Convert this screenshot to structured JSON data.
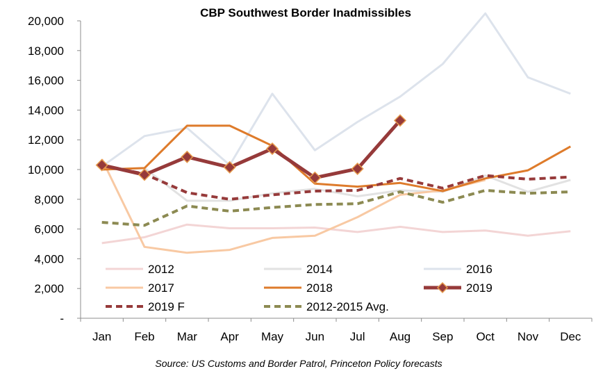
{
  "chart_data": {
    "type": "line",
    "title": "CBP Southwest Border Inadmissibles",
    "source": "Source: US Customs and Border Patrol, Princeton Policy forecasts",
    "categories": [
      "Jan",
      "Feb",
      "Mar",
      "Apr",
      "May",
      "Jun",
      "Jul",
      "Aug",
      "Sep",
      "Oct",
      "Nov",
      "Dec"
    ],
    "ylim": [
      0,
      20000
    ],
    "yticks": [
      {
        "value": 0,
        "label": "-"
      },
      {
        "value": 2000,
        "label": "2,000"
      },
      {
        "value": 4000,
        "label": "4,000"
      },
      {
        "value": 6000,
        "label": "6,000"
      },
      {
        "value": 8000,
        "label": "8,000"
      },
      {
        "value": 10000,
        "label": "10,000"
      },
      {
        "value": 12000,
        "label": "12,000"
      },
      {
        "value": 14000,
        "label": "14,000"
      },
      {
        "value": 16000,
        "label": "16,000"
      },
      {
        "value": 18000,
        "label": "18,000"
      },
      {
        "value": 20000,
        "label": "20,000"
      }
    ],
    "grid": false,
    "legend_position": "bottom-inside",
    "series": [
      {
        "name": "2016",
        "color": "#dde3ec",
        "style": "solid",
        "values": [
          10200,
          12250,
          12800,
          10300,
          15100,
          11300,
          13200,
          14900,
          17100,
          20500,
          16200,
          15100
        ]
      },
      {
        "name": "2014",
        "color": "#e2e2e2",
        "style": "solid",
        "values": [
          10000,
          10100,
          7900,
          7900,
          8400,
          8700,
          8200,
          8600,
          8500,
          9600,
          8500,
          9300
        ]
      },
      {
        "name": "2012",
        "color": "#f3d5d5",
        "style": "solid",
        "values": [
          5050,
          5450,
          6300,
          6050,
          6050,
          6100,
          5800,
          6150,
          5800,
          5900,
          5550,
          5850
        ]
      },
      {
        "name": "2017",
        "color": "#f8c9a3",
        "style": "solid",
        "values": [
          10700,
          4800,
          4400,
          4600,
          5400,
          5550,
          6800,
          8300,
          8600,
          9300,
          null,
          null
        ]
      },
      {
        "name": "2018",
        "color": "#de7b2b",
        "style": "solid",
        "values": [
          10000,
          10100,
          12950,
          12950,
          11600,
          9050,
          8850,
          9100,
          8550,
          9400,
          9950,
          11550
        ]
      },
      {
        "name": "2012-2015 Avg.",
        "color": "#8c8a52",
        "style": "dashed",
        "values": [
          6450,
          6250,
          7550,
          7200,
          7450,
          7650,
          7700,
          8500,
          7800,
          8600,
          8400,
          8500
        ]
      },
      {
        "name": "2019 F",
        "color": "#963a3a",
        "style": "dashed",
        "values": [
          10300,
          9700,
          8450,
          8000,
          8300,
          8550,
          8600,
          9400,
          8750,
          9600,
          9350,
          9500
        ]
      },
      {
        "name": "2019",
        "color": "#963a3a",
        "style": "solid-marker",
        "values": [
          10300,
          9650,
          10850,
          10150,
          11400,
          9450,
          10050,
          13300,
          null,
          null,
          null,
          null
        ]
      }
    ],
    "legend": [
      [
        "2012",
        "2014",
        "2016"
      ],
      [
        "2017",
        "2018",
        "2019"
      ],
      [
        "2019 F",
        "2012-2015 Avg."
      ]
    ]
  }
}
